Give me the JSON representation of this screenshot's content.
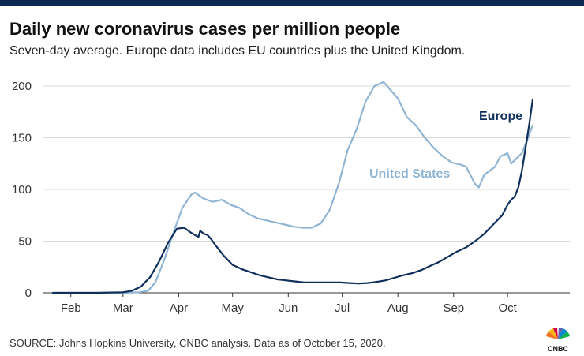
{
  "title": "Daily new coronavirus cases per million people",
  "subtitle": "Seven-day average. Europe data includes EU countries plus the United Kingdom.",
  "source": "SOURCE: Johns Hopkins University, CNBC analysis. Data as of October 15, 2020.",
  "logo_text": "CNBC",
  "colors": {
    "europe": "#0f2f5c",
    "us": "#8fb4d4",
    "axis": "#333333",
    "grid": "#d8d8d8",
    "bar": "#0f2a52"
  },
  "chart_data": {
    "type": "line",
    "title": "Daily new coronavirus cases per million people",
    "subtitle": "Seven-day average. Europe data includes EU countries plus the United Kingdom.",
    "xlabel": "",
    "ylabel": "",
    "ylim": [
      0,
      200
    ],
    "yticks": [
      0,
      50,
      100,
      150,
      200
    ],
    "xlim": [
      "2020-01-22",
      "2020-10-15"
    ],
    "xtick_labels": [
      "Feb",
      "Mar",
      "Apr",
      "May",
      "Jun",
      "Jul",
      "Aug",
      "Sep",
      "Oct"
    ],
    "xtick_dates": [
      "2020-02-01",
      "2020-03-01",
      "2020-04-01",
      "2020-05-01",
      "2020-06-01",
      "2020-07-01",
      "2020-08-01",
      "2020-09-01",
      "2020-10-01"
    ],
    "grid": "horizontal",
    "legend": "direct labels",
    "series": [
      {
        "name": "Europe",
        "points": [
          [
            "2020-01-22",
            0
          ],
          [
            "2020-02-01",
            0
          ],
          [
            "2020-02-15",
            0
          ],
          [
            "2020-03-01",
            0.5
          ],
          [
            "2020-03-06",
            2
          ],
          [
            "2020-03-11",
            6
          ],
          [
            "2020-03-16",
            15
          ],
          [
            "2020-03-21",
            30
          ],
          [
            "2020-03-26",
            48
          ],
          [
            "2020-03-31",
            62
          ],
          [
            "2020-04-04",
            63
          ],
          [
            "2020-04-08",
            58
          ],
          [
            "2020-04-12",
            54
          ],
          [
            "2020-04-13",
            60
          ],
          [
            "2020-04-15",
            57
          ],
          [
            "2020-04-17",
            56
          ],
          [
            "2020-04-19",
            52
          ],
          [
            "2020-04-22",
            45
          ],
          [
            "2020-04-26",
            36
          ],
          [
            "2020-05-01",
            27
          ],
          [
            "2020-05-06",
            23
          ],
          [
            "2020-05-11",
            20
          ],
          [
            "2020-05-16",
            17
          ],
          [
            "2020-05-21",
            15
          ],
          [
            "2020-05-26",
            13
          ],
          [
            "2020-05-31",
            12
          ],
          [
            "2020-06-05",
            11
          ],
          [
            "2020-06-10",
            10
          ],
          [
            "2020-06-15",
            10
          ],
          [
            "2020-06-20",
            10
          ],
          [
            "2020-06-25",
            10
          ],
          [
            "2020-06-30",
            10
          ],
          [
            "2020-07-05",
            9.5
          ],
          [
            "2020-07-10",
            9
          ],
          [
            "2020-07-15",
            9.5
          ],
          [
            "2020-07-20",
            10.5
          ],
          [
            "2020-07-25",
            12
          ],
          [
            "2020-07-30",
            14.5
          ],
          [
            "2020-08-04",
            17
          ],
          [
            "2020-08-09",
            19
          ],
          [
            "2020-08-14",
            22
          ],
          [
            "2020-08-19",
            26
          ],
          [
            "2020-08-24",
            30
          ],
          [
            "2020-08-29",
            35
          ],
          [
            "2020-09-03",
            40
          ],
          [
            "2020-09-08",
            44
          ],
          [
            "2020-09-13",
            50
          ],
          [
            "2020-09-18",
            57
          ],
          [
            "2020-09-23",
            66
          ],
          [
            "2020-09-28",
            75
          ],
          [
            "2020-10-01",
            85
          ],
          [
            "2020-10-03",
            90
          ],
          [
            "2020-10-05",
            93
          ],
          [
            "2020-10-07",
            102
          ],
          [
            "2020-10-09",
            118
          ],
          [
            "2020-10-11",
            140
          ],
          [
            "2020-10-13",
            162
          ],
          [
            "2020-10-15",
            187
          ]
        ]
      },
      {
        "name": "United States",
        "points": [
          [
            "2020-01-22",
            0
          ],
          [
            "2020-02-15",
            0
          ],
          [
            "2020-03-01",
            0
          ],
          [
            "2020-03-10",
            0.5
          ],
          [
            "2020-03-15",
            2
          ],
          [
            "2020-03-19",
            10
          ],
          [
            "2020-03-24",
            32
          ],
          [
            "2020-03-29",
            58
          ],
          [
            "2020-04-03",
            82
          ],
          [
            "2020-04-08",
            95
          ],
          [
            "2020-04-10",
            97
          ],
          [
            "2020-04-15",
            91
          ],
          [
            "2020-04-20",
            88
          ],
          [
            "2020-04-25",
            90
          ],
          [
            "2020-04-30",
            85
          ],
          [
            "2020-05-05",
            82
          ],
          [
            "2020-05-10",
            76
          ],
          [
            "2020-05-15",
            72
          ],
          [
            "2020-05-20",
            70
          ],
          [
            "2020-05-25",
            68
          ],
          [
            "2020-05-30",
            66
          ],
          [
            "2020-06-04",
            64
          ],
          [
            "2020-06-09",
            63
          ],
          [
            "2020-06-14",
            63
          ],
          [
            "2020-06-19",
            67
          ],
          [
            "2020-06-24",
            80
          ],
          [
            "2020-06-29",
            105
          ],
          [
            "2020-07-04",
            138
          ],
          [
            "2020-07-09",
            158
          ],
          [
            "2020-07-14",
            185
          ],
          [
            "2020-07-19",
            200
          ],
          [
            "2020-07-24",
            204
          ],
          [
            "2020-07-27",
            198
          ],
          [
            "2020-08-01",
            188
          ],
          [
            "2020-08-06",
            170
          ],
          [
            "2020-08-11",
            162
          ],
          [
            "2020-08-16",
            150
          ],
          [
            "2020-08-21",
            140
          ],
          [
            "2020-08-26",
            132
          ],
          [
            "2020-08-31",
            126
          ],
          [
            "2020-09-05",
            124
          ],
          [
            "2020-09-08",
            122
          ],
          [
            "2020-09-10",
            115
          ],
          [
            "2020-09-13",
            105
          ],
          [
            "2020-09-15",
            102
          ],
          [
            "2020-09-18",
            114
          ],
          [
            "2020-09-21",
            118
          ],
          [
            "2020-09-24",
            122
          ],
          [
            "2020-09-27",
            132
          ],
          [
            "2020-10-01",
            135
          ],
          [
            "2020-10-03",
            125
          ],
          [
            "2020-10-06",
            130
          ],
          [
            "2020-10-09",
            135
          ],
          [
            "2020-10-12",
            148
          ],
          [
            "2020-10-15",
            162
          ]
        ]
      }
    ],
    "annotations": [
      {
        "text": "Europe",
        "series": "Europe"
      },
      {
        "text": "United States",
        "series": "United States"
      }
    ]
  }
}
